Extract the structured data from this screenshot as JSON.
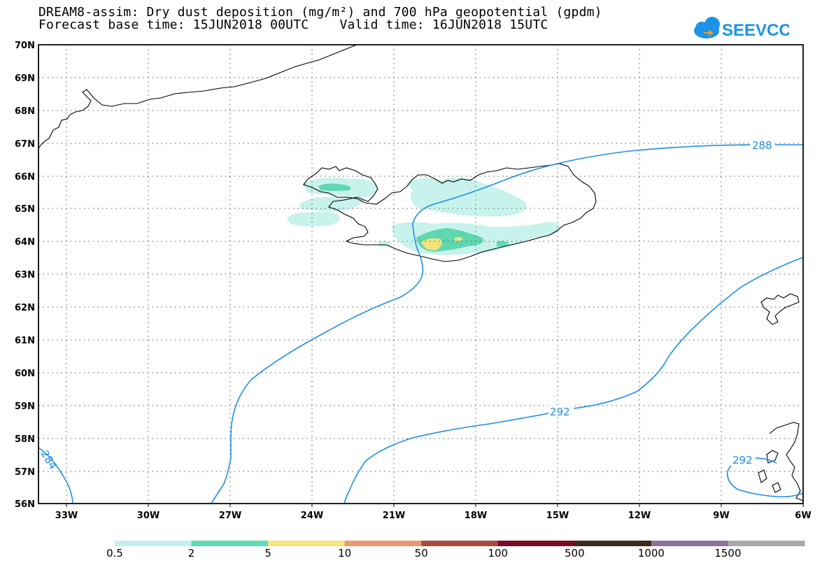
{
  "header": {
    "title_line1": "DREAM8-assim: Dry dust deposition (mg/m²) and 700 hPa geopotential (gpdm)",
    "title_line2": "Forecast base time: 15JUN2018 00UTC    Valid time: 16JUN2018 15UTC",
    "logo_text": "SEEVCCC"
  },
  "map": {
    "lat_labels": [
      "70N",
      "69N",
      "68N",
      "67N",
      "66N",
      "65N",
      "64N",
      "63N",
      "62N",
      "61N",
      "60N",
      "59N",
      "58N",
      "57N",
      "56N"
    ],
    "lon_labels": [
      "33W",
      "30W",
      "27W",
      "24W",
      "21W",
      "18W",
      "15W",
      "12W",
      "9W",
      "6W"
    ],
    "contour_labels": {
      "c288": "288",
      "c284": "284",
      "c292_mid": "292",
      "c292_right": "292"
    },
    "colors": {
      "contour": "#1e8fe0",
      "coast": "#000000",
      "dust_0_5": "#c8f2ec",
      "dust_2": "#5fd7b0",
      "dust_5": "#f3e27a"
    }
  },
  "legend": {
    "labels": [
      "0.5",
      "2",
      "5",
      "10",
      "50",
      "100",
      "500",
      "1000",
      "1500"
    ],
    "colors": [
      "#c4f0ea",
      "#5edcb4",
      "#f5e57a",
      "#ee9670",
      "#a94a3e",
      "#7a0c28",
      "#3d2a1d",
      "#8f6f9c",
      "#a9a9a9"
    ]
  }
}
